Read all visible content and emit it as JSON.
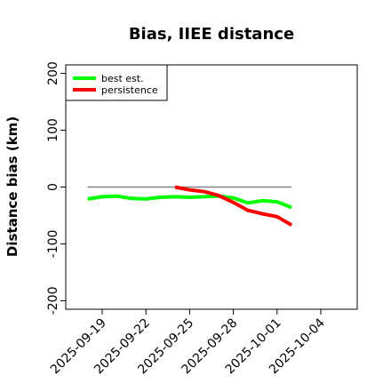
{
  "chart_data": {
    "type": "line",
    "title": "Bias, IIEE distance",
    "xlabel": "",
    "ylabel": "Distance bias (km)",
    "ylim": [
      -215,
      215
    ],
    "xlim": [
      "2025-09-16T12:00",
      "2025-10-06T12:00"
    ],
    "x_ticks": [
      "2025-09-19",
      "2025-09-22",
      "2025-09-25",
      "2025-09-28",
      "2025-10-01",
      "2025-10-04"
    ],
    "y_ticks": [
      -200,
      -100,
      0,
      100,
      200
    ],
    "grid": false,
    "legend_position": "top-left",
    "reference_line": {
      "y": 0,
      "x_start": "2025-09-18",
      "x_end": "2025-10-02",
      "color": "#808080"
    },
    "series": [
      {
        "name": "best est.",
        "color": "#00ff00",
        "x": [
          "2025-09-18",
          "2025-09-19",
          "2025-09-20",
          "2025-09-21",
          "2025-09-22",
          "2025-09-23",
          "2025-09-24",
          "2025-09-25",
          "2025-09-26",
          "2025-09-27",
          "2025-09-28",
          "2025-09-29",
          "2025-09-30",
          "2025-10-01",
          "2025-10-02"
        ],
        "values": [
          -21,
          -17,
          -16,
          -20,
          -21,
          -18,
          -17,
          -18,
          -17,
          -16,
          -19,
          -28,
          -24,
          -26,
          -36
        ]
      },
      {
        "name": "persistence",
        "color": "#ff0000",
        "x": [
          "2025-09-24",
          "2025-09-25",
          "2025-09-26",
          "2025-09-27",
          "2025-09-28",
          "2025-09-29",
          "2025-09-30",
          "2025-10-01",
          "2025-10-02"
        ],
        "values": [
          0,
          -5,
          -8,
          -15,
          -27,
          -41,
          -47,
          -52,
          -67
        ]
      }
    ]
  }
}
